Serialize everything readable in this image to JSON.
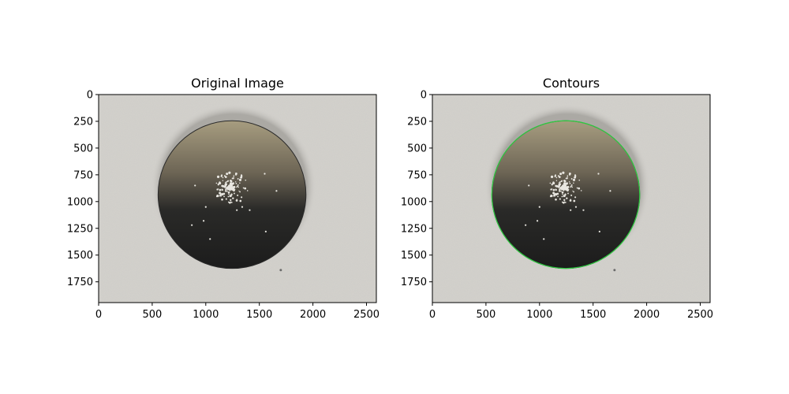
{
  "chart_data": [
    {
      "type": "image",
      "title": "Original Image",
      "xlim": [
        0,
        2592
      ],
      "ylim": [
        1944,
        0
      ],
      "xticks": [
        0,
        500,
        1000,
        1500,
        2000,
        2500
      ],
      "yticks": [
        0,
        250,
        500,
        750,
        1000,
        1250,
        1500,
        1750
      ],
      "disc": {
        "cx": 1245,
        "cy": 935,
        "r": 690
      },
      "contour": null
    },
    {
      "type": "image",
      "title": "Contours",
      "xlim": [
        0,
        2592
      ],
      "ylim": [
        1944,
        0
      ],
      "xticks": [
        0,
        500,
        1000,
        1500,
        2000,
        2500
      ],
      "yticks": [
        0,
        250,
        500,
        750,
        1000,
        1250,
        1500,
        1750
      ],
      "disc": {
        "cx": 1245,
        "cy": 935,
        "r": 690
      },
      "contour": {
        "cx": 1245,
        "cy": 935,
        "r": 690,
        "color": "#2ecc40"
      }
    }
  ],
  "colors": {
    "paper": "#d3d1cc",
    "disc_top": "#9a8f72",
    "disc_bottom": "#202020",
    "grains": "#e8e6e0"
  }
}
